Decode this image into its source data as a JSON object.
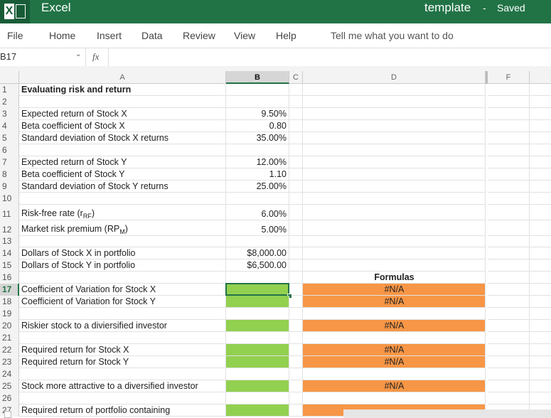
{
  "app": {
    "name": "Excel",
    "document": "template",
    "separator": "-",
    "status": "Saved"
  },
  "menu": [
    "File",
    "Home",
    "Insert",
    "Data",
    "Review",
    "View",
    "Help"
  ],
  "tell_me": "Tell me what you want to do",
  "name_box": "B17",
  "formula_icon": "fx",
  "columns": [
    "A",
    "B",
    "C",
    "D",
    "F"
  ],
  "selected": {
    "column": "B",
    "row": 17
  },
  "rows": [
    {
      "n": 1,
      "a": "Evaluating risk and return",
      "bold": true
    },
    {
      "n": 2
    },
    {
      "n": 3,
      "a": "Expected return of Stock X",
      "b": "9.50%"
    },
    {
      "n": 4,
      "a": "Beta coefficient of Stock X",
      "b": "0.80"
    },
    {
      "n": 5,
      "a": "Standard deviation of Stock X returns",
      "b": "35.00%"
    },
    {
      "n": 6
    },
    {
      "n": 7,
      "a": "Expected return of Stock Y",
      "b": "12.00%"
    },
    {
      "n": 8,
      "a": "Beta coefficient of Stock Y",
      "b": "1.10"
    },
    {
      "n": 9,
      "a": "Standard deviation of Stock Y returns",
      "b": "25.00%"
    },
    {
      "n": 10
    },
    {
      "n": 11,
      "a": {
        "text": "Risk-free rate (r",
        "sub": "RF",
        "tail": ")"
      },
      "b": "6.00%"
    },
    {
      "n": 12,
      "a": {
        "text": "Market risk premium (RP",
        "sub": "M",
        "tail": ")"
      },
      "b": "5.00%"
    },
    {
      "n": 13
    },
    {
      "n": 14,
      "a": "Dollars of Stock X in portfolio",
      "b": "$8,000.00"
    },
    {
      "n": 15,
      "a": "Dollars of Stock Y in portfolio",
      "b": "$6,500.00"
    },
    {
      "n": 16,
      "d": "Formulas",
      "bold": true
    },
    {
      "n": 17,
      "a": "Coefficient of Variation for Stock X",
      "d": "#N/A",
      "b_fill": "#92d050",
      "d_fill": "#f79646"
    },
    {
      "n": 18,
      "a": "Coefficient of Variation for Stock Y",
      "d": "#N/A",
      "b_fill": "#92d050",
      "d_fill": "#f79646"
    },
    {
      "n": 19
    },
    {
      "n": 20,
      "a": "Riskier stock to a diviersified investor",
      "d": "#N/A",
      "b_fill": "#92d050",
      "d_fill": "#f79646"
    },
    {
      "n": 21
    },
    {
      "n": 22,
      "a": "Required return for Stock X",
      "d": "#N/A",
      "b_fill": "#92d050",
      "d_fill": "#f79646"
    },
    {
      "n": 23,
      "a": "Required return for Stock Y",
      "d": "#N/A",
      "b_fill": "#92d050",
      "d_fill": "#f79646"
    },
    {
      "n": 24
    },
    {
      "n": 25,
      "a": "Stock more attractive to a diversified investor",
      "d": "#N/A",
      "b_fill": "#92d050",
      "d_fill": "#f79646"
    },
    {
      "n": 26
    },
    {
      "n": 27,
      "a": "Required return of portfolio containing",
      "b_fill": "#92d050",
      "d_fill": "#f79646"
    }
  ]
}
